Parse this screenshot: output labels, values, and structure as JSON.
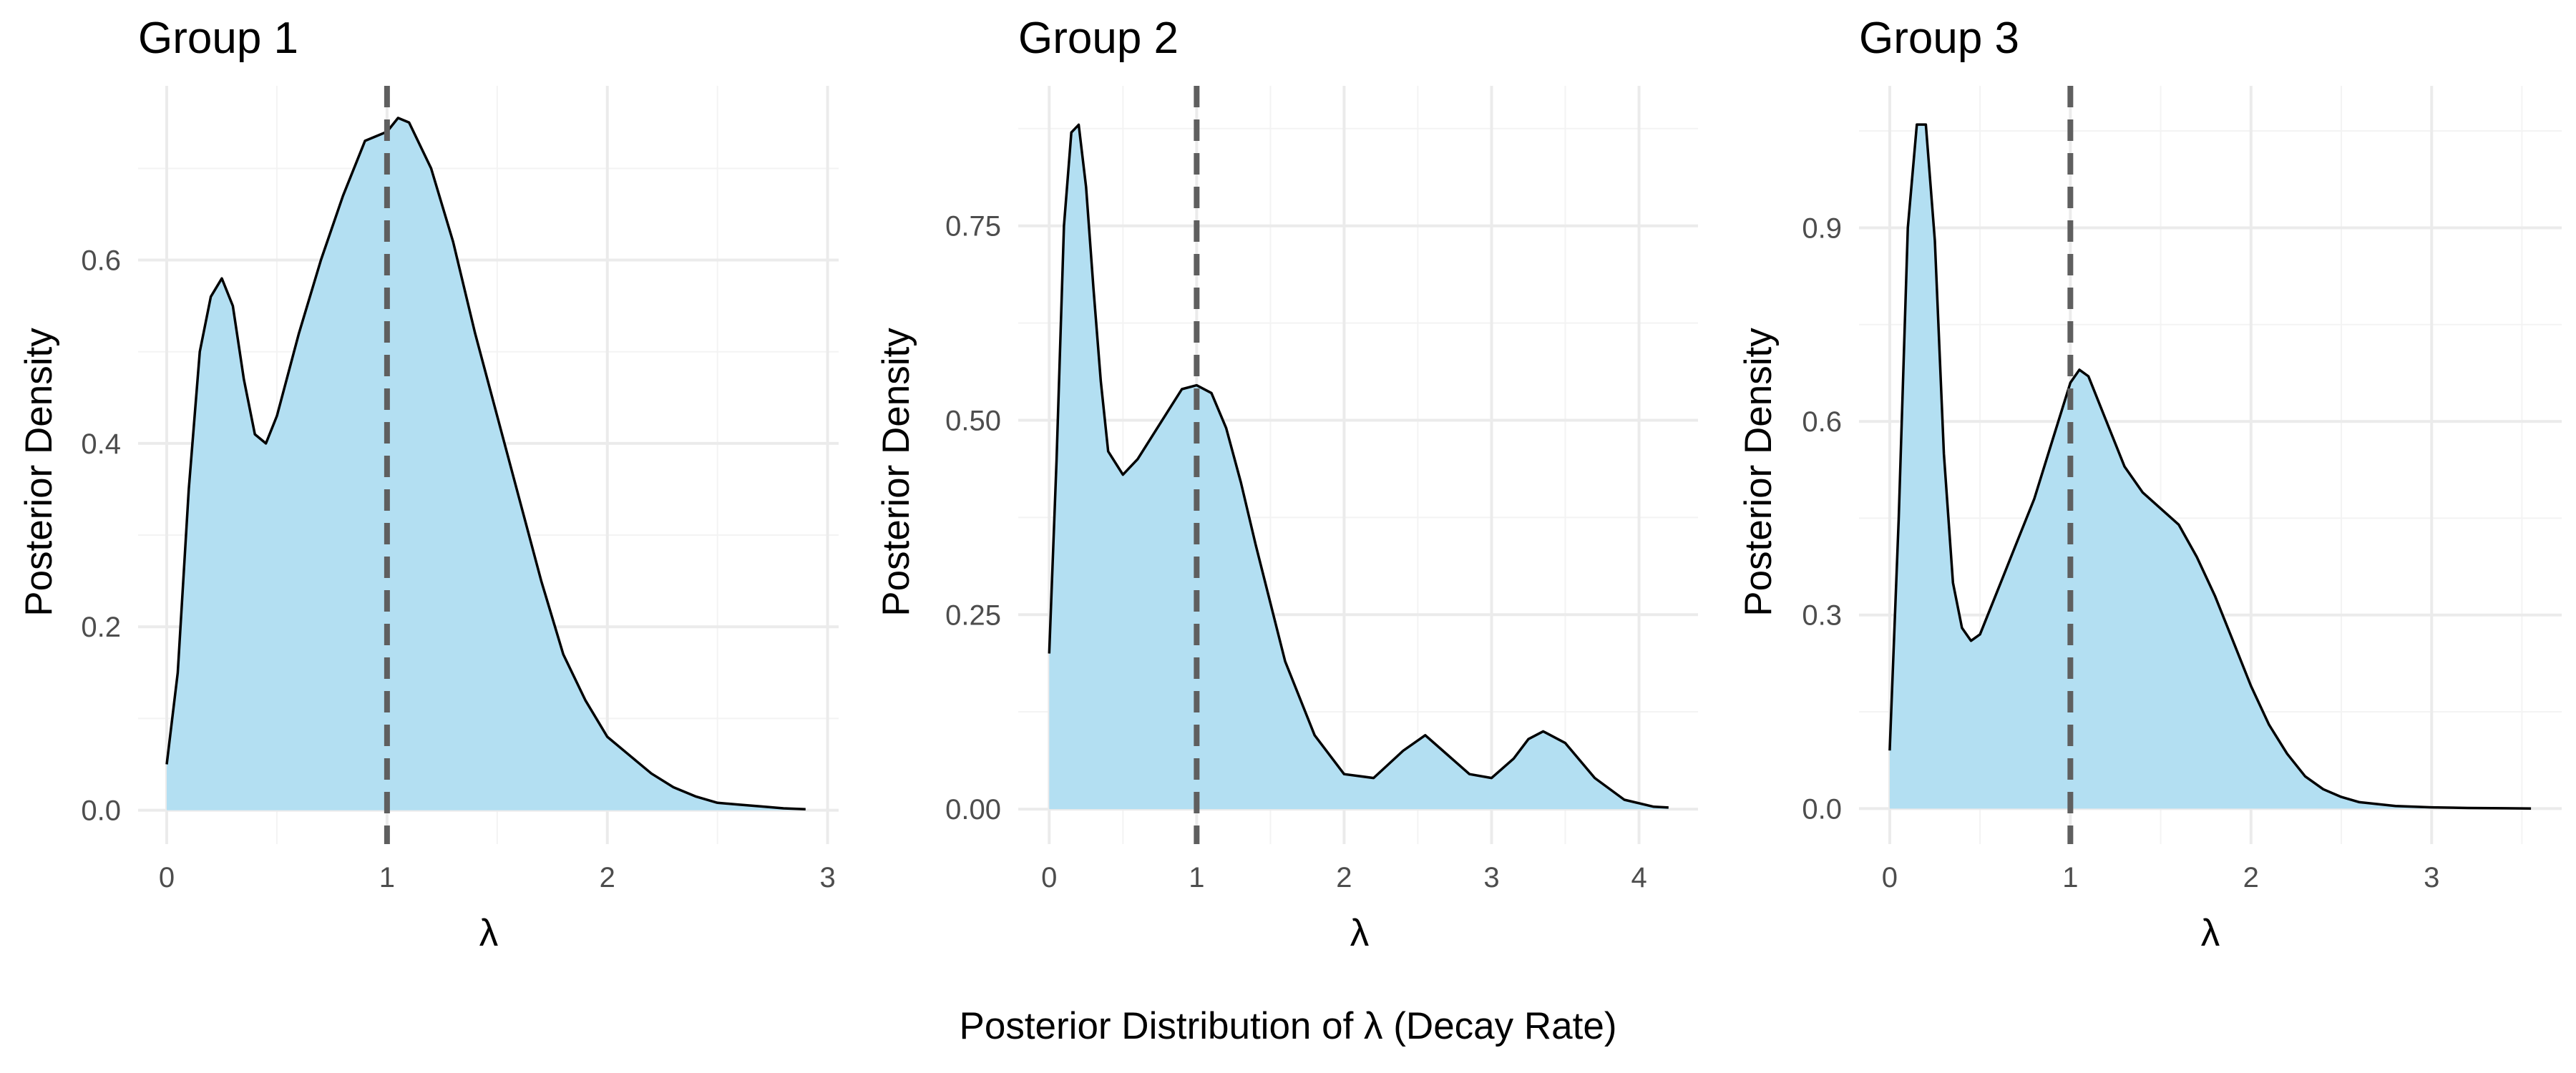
{
  "caption": "Posterior Distribution of λ (Decay Rate)",
  "colors": {
    "fill": "#b3dff2",
    "line": "#000000",
    "reference_line": "#5f5f5f",
    "grid_major": "#ebebeb",
    "grid_minor": "#f3f3f3",
    "tick_text": "#4d4d4d"
  },
  "chart_data": [
    {
      "type": "area",
      "title": "Group 1",
      "xlabel": "λ",
      "ylabel": "Posterior Density",
      "xlim": [
        -0.13,
        3.05
      ],
      "ylim": [
        -0.037,
        0.79
      ],
      "x_ticks": [
        0,
        1,
        2,
        3
      ],
      "x_tick_labels": [
        "0",
        "1",
        "2",
        "3"
      ],
      "y_ticks": [
        0.0,
        0.2,
        0.4,
        0.6
      ],
      "y_tick_labels": [
        "0.0",
        "0.2",
        "0.4",
        "0.6"
      ],
      "grid": true,
      "reference_line": {
        "x": 1,
        "style": "dashed"
      },
      "series": [
        {
          "x": [
            0.0,
            0.05,
            0.1,
            0.15,
            0.2,
            0.25,
            0.3,
            0.35,
            0.4,
            0.45,
            0.5,
            0.6,
            0.7,
            0.8,
            0.9,
            1.0,
            1.05,
            1.1,
            1.2,
            1.3,
            1.4,
            1.5,
            1.6,
            1.7,
            1.8,
            1.9,
            2.0,
            2.1,
            2.2,
            2.3,
            2.4,
            2.5,
            2.6,
            2.7,
            2.8,
            2.9
          ],
          "y": [
            0.05,
            0.15,
            0.35,
            0.5,
            0.56,
            0.58,
            0.55,
            0.47,
            0.41,
            0.4,
            0.43,
            0.52,
            0.6,
            0.67,
            0.73,
            0.74,
            0.755,
            0.75,
            0.7,
            0.62,
            0.52,
            0.43,
            0.34,
            0.25,
            0.17,
            0.12,
            0.08,
            0.06,
            0.04,
            0.025,
            0.015,
            0.008,
            0.006,
            0.004,
            0.002,
            0.001
          ]
        }
      ]
    },
    {
      "type": "area",
      "title": "Group 2",
      "xlabel": "λ",
      "ylabel": "Posterior Density",
      "xlim": [
        -0.21,
        4.4
      ],
      "ylim": [
        -0.045,
        0.93
      ],
      "x_ticks": [
        0,
        1,
        2,
        3,
        4
      ],
      "x_tick_labels": [
        "0",
        "1",
        "2",
        "3",
        "4"
      ],
      "y_ticks": [
        0.0,
        0.25,
        0.5,
        0.75
      ],
      "y_tick_labels": [
        "0.00",
        "0.25",
        "0.50",
        "0.75"
      ],
      "grid": true,
      "reference_line": {
        "x": 1,
        "style": "dashed"
      },
      "series": [
        {
          "x": [
            0.0,
            0.05,
            0.1,
            0.15,
            0.2,
            0.25,
            0.3,
            0.35,
            0.4,
            0.5,
            0.6,
            0.7,
            0.8,
            0.9,
            1.0,
            1.1,
            1.2,
            1.3,
            1.4,
            1.6,
            1.8,
            2.0,
            2.2,
            2.4,
            2.55,
            2.7,
            2.85,
            3.0,
            3.15,
            3.25,
            3.35,
            3.5,
            3.7,
            3.9,
            4.1,
            4.2
          ],
          "y": [
            0.2,
            0.45,
            0.75,
            0.87,
            0.88,
            0.8,
            0.67,
            0.55,
            0.46,
            0.43,
            0.45,
            0.48,
            0.51,
            0.54,
            0.545,
            0.535,
            0.49,
            0.42,
            0.34,
            0.19,
            0.095,
            0.045,
            0.04,
            0.075,
            0.095,
            0.07,
            0.045,
            0.04,
            0.065,
            0.09,
            0.1,
            0.085,
            0.04,
            0.012,
            0.003,
            0.002
          ]
        }
      ]
    },
    {
      "type": "area",
      "title": "Group 3",
      "xlabel": "λ",
      "ylabel": "Posterior Density",
      "xlim": [
        -0.17,
        3.72
      ],
      "ylim": [
        -0.055,
        1.12
      ],
      "x_ticks": [
        0,
        1,
        2,
        3
      ],
      "x_tick_labels": [
        "0",
        "1",
        "2",
        "3"
      ],
      "y_ticks": [
        0.0,
        0.3,
        0.6,
        0.9
      ],
      "y_tick_labels": [
        "0.0",
        "0.3",
        "0.6",
        "0.9"
      ],
      "grid": true,
      "reference_line": {
        "x": 1,
        "style": "dashed"
      },
      "series": [
        {
          "x": [
            0.0,
            0.05,
            0.1,
            0.15,
            0.2,
            0.25,
            0.3,
            0.35,
            0.4,
            0.45,
            0.5,
            0.6,
            0.7,
            0.8,
            0.9,
            1.0,
            1.05,
            1.1,
            1.2,
            1.3,
            1.4,
            1.5,
            1.6,
            1.7,
            1.8,
            1.9,
            2.0,
            2.1,
            2.2,
            2.3,
            2.4,
            2.5,
            2.6,
            2.8,
            3.0,
            3.2,
            3.4,
            3.55
          ],
          "y": [
            0.09,
            0.45,
            0.9,
            1.06,
            1.06,
            0.88,
            0.55,
            0.35,
            0.28,
            0.26,
            0.27,
            0.34,
            0.41,
            0.48,
            0.57,
            0.66,
            0.68,
            0.67,
            0.6,
            0.53,
            0.49,
            0.465,
            0.44,
            0.39,
            0.33,
            0.26,
            0.19,
            0.13,
            0.085,
            0.05,
            0.03,
            0.018,
            0.01,
            0.004,
            0.002,
            0.001,
            0.0005,
            0.0002
          ]
        }
      ]
    }
  ]
}
